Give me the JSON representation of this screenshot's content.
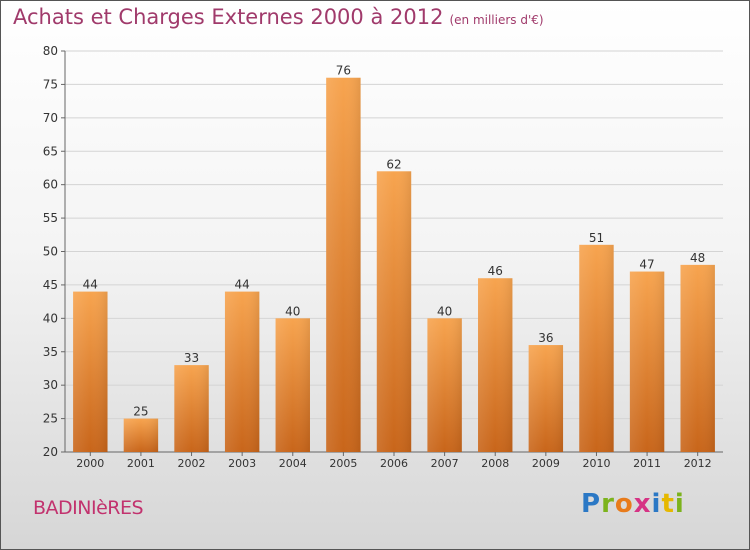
{
  "header": {
    "title": "Achats et Charges Externes 2000 à 2012",
    "subtitle": "(en milliers d'€)"
  },
  "footer": {
    "city": "BADINIèRES",
    "logo_text": "Proxiti"
  },
  "colors": {
    "bar_top": "#f7a44f",
    "bar_bottom": "#c8651a",
    "title": "#a03a6b",
    "city": "#c2326e"
  },
  "chart_data": {
    "type": "bar",
    "title": "Achats et Charges Externes 2000 à 2012",
    "subtitle": "(en milliers d'€)",
    "xlabel": "",
    "ylabel": "",
    "categories": [
      "2000",
      "2001",
      "2002",
      "2003",
      "2004",
      "2005",
      "2006",
      "2007",
      "2008",
      "2009",
      "2010",
      "2011",
      "2012"
    ],
    "values": [
      44,
      25,
      33,
      44,
      40,
      76,
      62,
      40,
      46,
      36,
      51,
      47,
      48
    ],
    "ylim": [
      20,
      80
    ],
    "yticks": [
      20,
      25,
      30,
      35,
      40,
      45,
      50,
      55,
      60,
      65,
      70,
      75,
      80
    ],
    "grid": true,
    "data_labels": true
  }
}
